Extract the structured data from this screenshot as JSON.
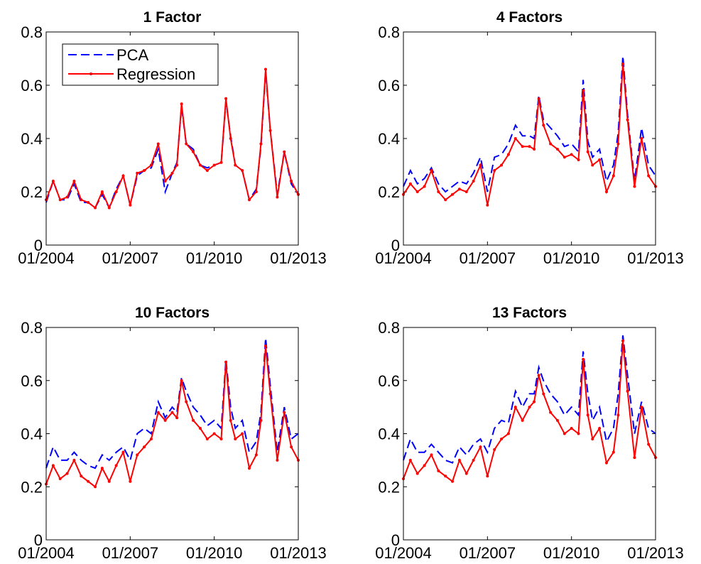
{
  "chart_data": [
    {
      "type": "line",
      "title": "1 Factor",
      "legend": "upper left",
      "x": [
        "01/2004",
        "04/2004",
        "07/2004",
        "10/2004",
        "01/2005",
        "04/2005",
        "07/2005",
        "10/2005",
        "01/2006",
        "04/2006",
        "07/2006",
        "10/2006",
        "01/2007",
        "04/2007",
        "07/2007",
        "10/2007",
        "01/2008",
        "04/2008",
        "07/2008",
        "09/2008",
        "11/2008",
        "01/2009",
        "04/2009",
        "07/2009",
        "10/2009",
        "01/2010",
        "04/2010",
        "06/2010",
        "08/2010",
        "10/2010",
        "01/2011",
        "04/2011",
        "07/2011",
        "09/2011",
        "11/2011",
        "01/2012",
        "04/2012",
        "07/2012",
        "10/2012",
        "01/2013"
      ],
      "xlim": [
        "01/2004",
        "01/2013"
      ],
      "xticks": [
        "01/2004",
        "01/2007",
        "01/2010",
        "01/2013"
      ],
      "ylim": [
        0,
        0.8
      ],
      "yticks": [
        0,
        0.2,
        0.4,
        0.6,
        0.8
      ],
      "series": [
        {
          "name": "PCA",
          "color": "#0000ff",
          "linestyle": "dashed",
          "values": [
            0.16,
            0.24,
            0.17,
            0.17,
            0.23,
            0.16,
            0.16,
            0.14,
            0.19,
            0.14,
            0.21,
            0.26,
            0.15,
            0.26,
            0.28,
            0.29,
            0.36,
            0.2,
            0.27,
            0.31,
            0.52,
            0.38,
            0.36,
            0.3,
            0.29,
            0.3,
            0.31,
            0.54,
            0.41,
            0.3,
            0.28,
            0.17,
            0.21,
            0.37,
            0.65,
            0.43,
            0.19,
            0.35,
            0.23,
            0.19
          ]
        },
        {
          "name": "Regression",
          "color": "#ff0000",
          "linestyle": "solid",
          "marker": "dot",
          "values": [
            0.17,
            0.24,
            0.17,
            0.18,
            0.24,
            0.17,
            0.16,
            0.14,
            0.2,
            0.14,
            0.2,
            0.26,
            0.15,
            0.27,
            0.28,
            0.3,
            0.38,
            0.24,
            0.27,
            0.3,
            0.53,
            0.38,
            0.35,
            0.3,
            0.28,
            0.3,
            0.31,
            0.55,
            0.4,
            0.3,
            0.28,
            0.17,
            0.2,
            0.38,
            0.66,
            0.43,
            0.18,
            0.35,
            0.24,
            0.19
          ]
        }
      ]
    },
    {
      "type": "line",
      "title": "4 Factors",
      "x": [
        "01/2004",
        "04/2004",
        "07/2004",
        "10/2004",
        "01/2005",
        "04/2005",
        "07/2005",
        "10/2005",
        "01/2006",
        "04/2006",
        "07/2006",
        "10/2006",
        "01/2007",
        "04/2007",
        "07/2007",
        "10/2007",
        "01/2008",
        "04/2008",
        "07/2008",
        "09/2008",
        "11/2008",
        "01/2009",
        "04/2009",
        "07/2009",
        "10/2009",
        "01/2010",
        "04/2010",
        "06/2010",
        "08/2010",
        "10/2010",
        "01/2011",
        "04/2011",
        "07/2011",
        "09/2011",
        "11/2011",
        "01/2012",
        "04/2012",
        "07/2012",
        "10/2012",
        "01/2013"
      ],
      "xlim": [
        "01/2004",
        "01/2013"
      ],
      "xticks": [
        "01/2004",
        "01/2007",
        "01/2010",
        "01/2013"
      ],
      "ylim": [
        0,
        0.8
      ],
      "yticks": [
        0,
        0.2,
        0.4,
        0.6,
        0.8
      ],
      "series": [
        {
          "name": "PCA",
          "color": "#0000ff",
          "linestyle": "dashed",
          "values": [
            0.22,
            0.28,
            0.23,
            0.25,
            0.29,
            0.23,
            0.2,
            0.22,
            0.24,
            0.23,
            0.27,
            0.33,
            0.2,
            0.33,
            0.34,
            0.38,
            0.45,
            0.41,
            0.41,
            0.4,
            0.56,
            0.47,
            0.44,
            0.41,
            0.37,
            0.38,
            0.35,
            0.62,
            0.39,
            0.33,
            0.36,
            0.24,
            0.3,
            0.42,
            0.71,
            0.49,
            0.24,
            0.44,
            0.3,
            0.26
          ]
        },
        {
          "name": "Regression",
          "color": "#ff0000",
          "linestyle": "solid",
          "marker": "dot",
          "values": [
            0.19,
            0.23,
            0.2,
            0.22,
            0.28,
            0.2,
            0.17,
            0.19,
            0.21,
            0.2,
            0.24,
            0.3,
            0.15,
            0.28,
            0.3,
            0.34,
            0.4,
            0.37,
            0.37,
            0.36,
            0.55,
            0.45,
            0.38,
            0.36,
            0.33,
            0.34,
            0.32,
            0.58,
            0.35,
            0.3,
            0.32,
            0.2,
            0.26,
            0.38,
            0.68,
            0.47,
            0.22,
            0.4,
            0.26,
            0.22
          ]
        }
      ]
    },
    {
      "type": "line",
      "title": "10 Factors",
      "x": [
        "01/2004",
        "04/2004",
        "07/2004",
        "10/2004",
        "01/2005",
        "04/2005",
        "07/2005",
        "10/2005",
        "01/2006",
        "04/2006",
        "07/2006",
        "10/2006",
        "01/2007",
        "04/2007",
        "07/2007",
        "10/2007",
        "01/2008",
        "04/2008",
        "07/2008",
        "09/2008",
        "11/2008",
        "01/2009",
        "04/2009",
        "07/2009",
        "10/2009",
        "01/2010",
        "04/2010",
        "06/2010",
        "08/2010",
        "10/2010",
        "01/2011",
        "04/2011",
        "07/2011",
        "09/2011",
        "11/2011",
        "01/2012",
        "04/2012",
        "07/2012",
        "10/2012",
        "01/2013"
      ],
      "xlim": [
        "01/2004",
        "01/2013"
      ],
      "xticks": [
        "01/2004",
        "01/2007",
        "01/2010",
        "01/2013"
      ],
      "ylim": [
        0,
        0.8
      ],
      "yticks": [
        0,
        0.2,
        0.4,
        0.6,
        0.8
      ],
      "series": [
        {
          "name": "PCA",
          "color": "#0000ff",
          "linestyle": "dashed",
          "values": [
            0.27,
            0.35,
            0.3,
            0.3,
            0.33,
            0.3,
            0.28,
            0.27,
            0.32,
            0.3,
            0.33,
            0.35,
            0.3,
            0.4,
            0.42,
            0.4,
            0.52,
            0.46,
            0.5,
            0.48,
            0.61,
            0.56,
            0.5,
            0.47,
            0.43,
            0.45,
            0.42,
            0.68,
            0.5,
            0.42,
            0.45,
            0.33,
            0.37,
            0.48,
            0.76,
            0.58,
            0.33,
            0.5,
            0.38,
            0.4
          ]
        },
        {
          "name": "Regression",
          "color": "#ff0000",
          "linestyle": "solid",
          "marker": "dot",
          "values": [
            0.21,
            0.28,
            0.23,
            0.25,
            0.3,
            0.24,
            0.22,
            0.2,
            0.27,
            0.22,
            0.28,
            0.33,
            0.22,
            0.32,
            0.35,
            0.38,
            0.48,
            0.45,
            0.48,
            0.46,
            0.6,
            0.52,
            0.45,
            0.42,
            0.38,
            0.4,
            0.38,
            0.67,
            0.45,
            0.38,
            0.4,
            0.27,
            0.32,
            0.45,
            0.73,
            0.55,
            0.3,
            0.48,
            0.35,
            0.3
          ]
        }
      ]
    },
    {
      "type": "line",
      "title": "13 Factors",
      "x": [
        "01/2004",
        "04/2004",
        "07/2004",
        "10/2004",
        "01/2005",
        "04/2005",
        "07/2005",
        "10/2005",
        "01/2006",
        "04/2006",
        "07/2006",
        "10/2006",
        "01/2007",
        "04/2007",
        "07/2007",
        "10/2007",
        "01/2008",
        "04/2008",
        "07/2008",
        "09/2008",
        "11/2008",
        "01/2009",
        "04/2009",
        "07/2009",
        "10/2009",
        "01/2010",
        "04/2010",
        "06/2010",
        "08/2010",
        "10/2010",
        "01/2011",
        "04/2011",
        "07/2011",
        "09/2011",
        "11/2011",
        "01/2012",
        "04/2012",
        "07/2012",
        "10/2012",
        "01/2013"
      ],
      "xlim": [
        "01/2004",
        "01/2013"
      ],
      "xticks": [
        "01/2004",
        "01/2007",
        "01/2010",
        "01/2013"
      ],
      "ylim": [
        0,
        0.8
      ],
      "yticks": [
        0,
        0.2,
        0.4,
        0.6,
        0.8
      ],
      "series": [
        {
          "name": "PCA",
          "color": "#0000ff",
          "linestyle": "dashed",
          "values": [
            0.3,
            0.38,
            0.33,
            0.33,
            0.36,
            0.33,
            0.3,
            0.29,
            0.35,
            0.32,
            0.36,
            0.38,
            0.33,
            0.42,
            0.45,
            0.44,
            0.56,
            0.5,
            0.55,
            0.55,
            0.65,
            0.6,
            0.55,
            0.52,
            0.47,
            0.5,
            0.47,
            0.71,
            0.55,
            0.45,
            0.5,
            0.37,
            0.42,
            0.55,
            0.77,
            0.62,
            0.4,
            0.52,
            0.42,
            0.4
          ]
        },
        {
          "name": "Regression",
          "color": "#ff0000",
          "linestyle": "solid",
          "marker": "dot",
          "values": [
            0.23,
            0.3,
            0.25,
            0.28,
            0.32,
            0.26,
            0.24,
            0.22,
            0.3,
            0.25,
            0.3,
            0.35,
            0.24,
            0.34,
            0.38,
            0.4,
            0.5,
            0.45,
            0.5,
            0.52,
            0.62,
            0.55,
            0.48,
            0.45,
            0.4,
            0.42,
            0.4,
            0.68,
            0.47,
            0.38,
            0.42,
            0.29,
            0.33,
            0.47,
            0.75,
            0.56,
            0.31,
            0.5,
            0.36,
            0.31
          ]
        }
      ]
    }
  ]
}
